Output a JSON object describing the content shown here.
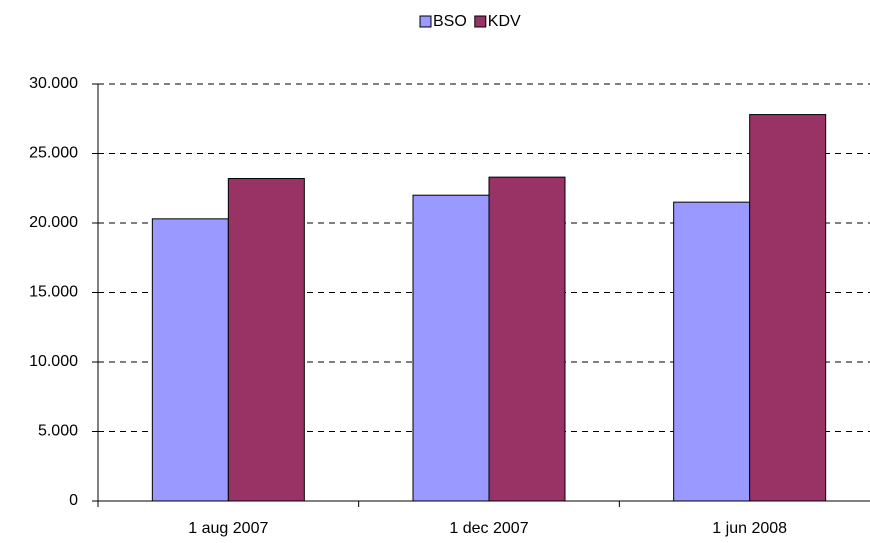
{
  "chart_data": {
    "type": "bar",
    "categories": [
      "1 aug 2007",
      "1 dec 2007",
      "1 jun 2008"
    ],
    "series": [
      {
        "name": "BSO",
        "color": "#9999ff",
        "values": [
          20300,
          22000,
          21500
        ]
      },
      {
        "name": "KDV",
        "color": "#993366",
        "values": [
          23200,
          23300,
          27800
        ]
      }
    ],
    "ylim": [
      0,
      30000
    ],
    "yticks": [
      0,
      {
        "value": 5000,
        "label": "5.000"
      },
      {
        "value": 10000,
        "label": "10.000"
      },
      {
        "value": 15000,
        "label": "15.000"
      },
      {
        "value": 20000,
        "label": "20.000"
      },
      {
        "value": 25000,
        "label": "25.000"
      },
      {
        "value": 30000,
        "label": "30.000"
      }
    ],
    "grid": true,
    "legend": "top"
  }
}
